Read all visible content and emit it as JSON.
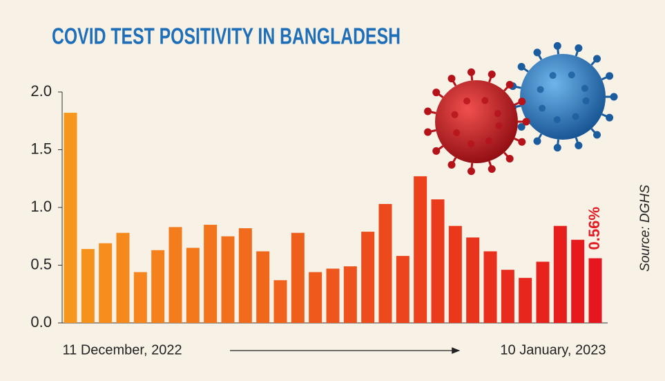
{
  "chart_data": {
    "type": "bar",
    "title": "COVID TEST POSITIVITY IN BANGLADESH",
    "source": "Source: DGHS",
    "categories": [
      "11 December, 2022",
      null,
      null,
      null,
      null,
      null,
      null,
      null,
      null,
      null,
      null,
      null,
      null,
      null,
      null,
      null,
      null,
      null,
      null,
      null,
      null,
      null,
      null,
      null,
      null,
      null,
      null,
      null,
      null,
      null,
      "10 January, 2023"
    ],
    "values": [
      1.82,
      0.64,
      0.69,
      0.78,
      0.44,
      0.63,
      0.83,
      0.65,
      0.85,
      0.75,
      0.82,
      0.62,
      0.37,
      0.78,
      0.44,
      0.47,
      0.49,
      0.79,
      1.03,
      0.58,
      1.27,
      1.07,
      0.84,
      0.74,
      0.62,
      0.46,
      0.39,
      0.53,
      0.84,
      0.72,
      0.56
    ],
    "value_labels": [
      null,
      null,
      null,
      null,
      null,
      null,
      null,
      null,
      null,
      null,
      null,
      null,
      null,
      null,
      null,
      null,
      null,
      null,
      null,
      null,
      null,
      null,
      null,
      null,
      null,
      null,
      null,
      null,
      null,
      null,
      "0.56%"
    ],
    "color_range": [
      "#f7961c",
      "#e5161d"
    ],
    "ylim": [
      0,
      2
    ],
    "yticks": [
      {
        "value": 0,
        "label": "0.0"
      },
      0.5,
      {
        "value": 1,
        "label": "1.0"
      },
      1.5,
      {
        "value": 2,
        "label": "2.0"
      }
    ],
    "grid": false
  }
}
